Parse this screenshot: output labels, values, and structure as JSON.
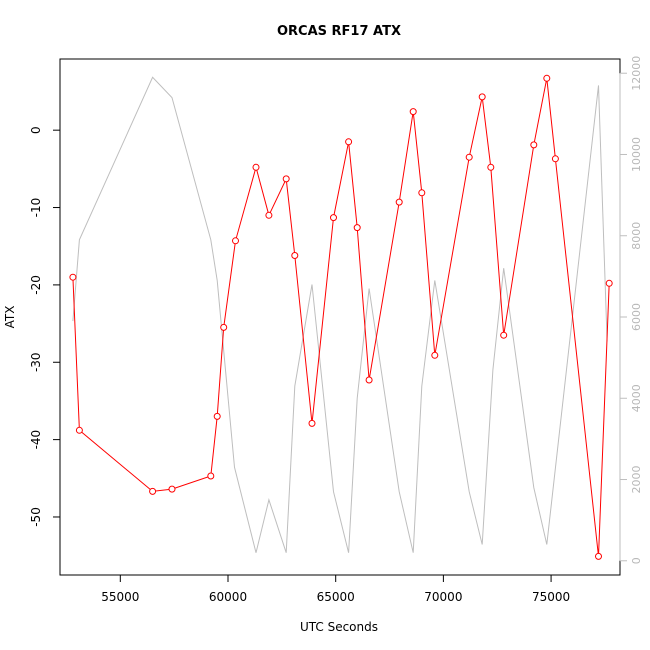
{
  "chart_data": {
    "type": "line",
    "title": "ORCAS RF17 ATX",
    "xlabel": "UTC Seconds",
    "ylabel": "ATX",
    "xlim": [
      52200,
      78200
    ],
    "ylim": [
      -57.5,
      9.2
    ],
    "y2lim": [
      -350,
      12350
    ],
    "x_ticks": [
      55000,
      60000,
      65000,
      70000,
      75000
    ],
    "y_ticks": [
      0,
      -10,
      -20,
      -30,
      -40,
      -50
    ],
    "y2_ticks": [
      0,
      2000,
      4000,
      6000,
      8000,
      10000,
      12000
    ],
    "colors": {
      "primary": "#ff0000",
      "secondary": "#bebebe"
    },
    "series": [
      {
        "axis": "left",
        "marker": "open-circle",
        "x": [
          52800,
          53100,
          56500,
          57400,
          59200,
          59500,
          59800,
          60350,
          61300,
          61900,
          62700,
          63100,
          63900,
          64900,
          65600,
          66000,
          66550,
          67950,
          68600,
          69000,
          69600,
          71200,
          71800,
          72200,
          72800,
          74200,
          74800,
          75200,
          77200,
          77700
        ],
        "y": [
          -19,
          -38.8,
          -46.7,
          -46.4,
          -44.7,
          -37,
          -25.5,
          -14.3,
          -4.8,
          -11,
          -6.3,
          -16.2,
          -37.9,
          -11.3,
          -1.5,
          -12.6,
          -32.3,
          -9.3,
          2.4,
          -8.1,
          -29.1,
          -3.5,
          4.3,
          -4.8,
          -26.5,
          -1.9,
          6.7,
          -3.7,
          -55.1,
          -19.8
        ]
      },
      {
        "axis": "right",
        "marker": "none",
        "x": [
          52800,
          53100,
          56500,
          57400,
          59200,
          59500,
          60300,
          61300,
          61900,
          62700,
          63100,
          63900,
          64900,
          65600,
          66000,
          66550,
          67950,
          68600,
          69000,
          69600,
          71200,
          71800,
          72300,
          72800,
          74200,
          74800,
          77200,
          77600
        ],
        "y": [
          5900,
          7900,
          11900,
          11400,
          7900,
          6900,
          2300,
          200,
          1500,
          200,
          4300,
          6800,
          1700,
          200,
          4000,
          6700,
          1700,
          200,
          4300,
          6900,
          1700,
          400,
          4700,
          7200,
          1800,
          400,
          11700,
          5400
        ]
      }
    ]
  }
}
